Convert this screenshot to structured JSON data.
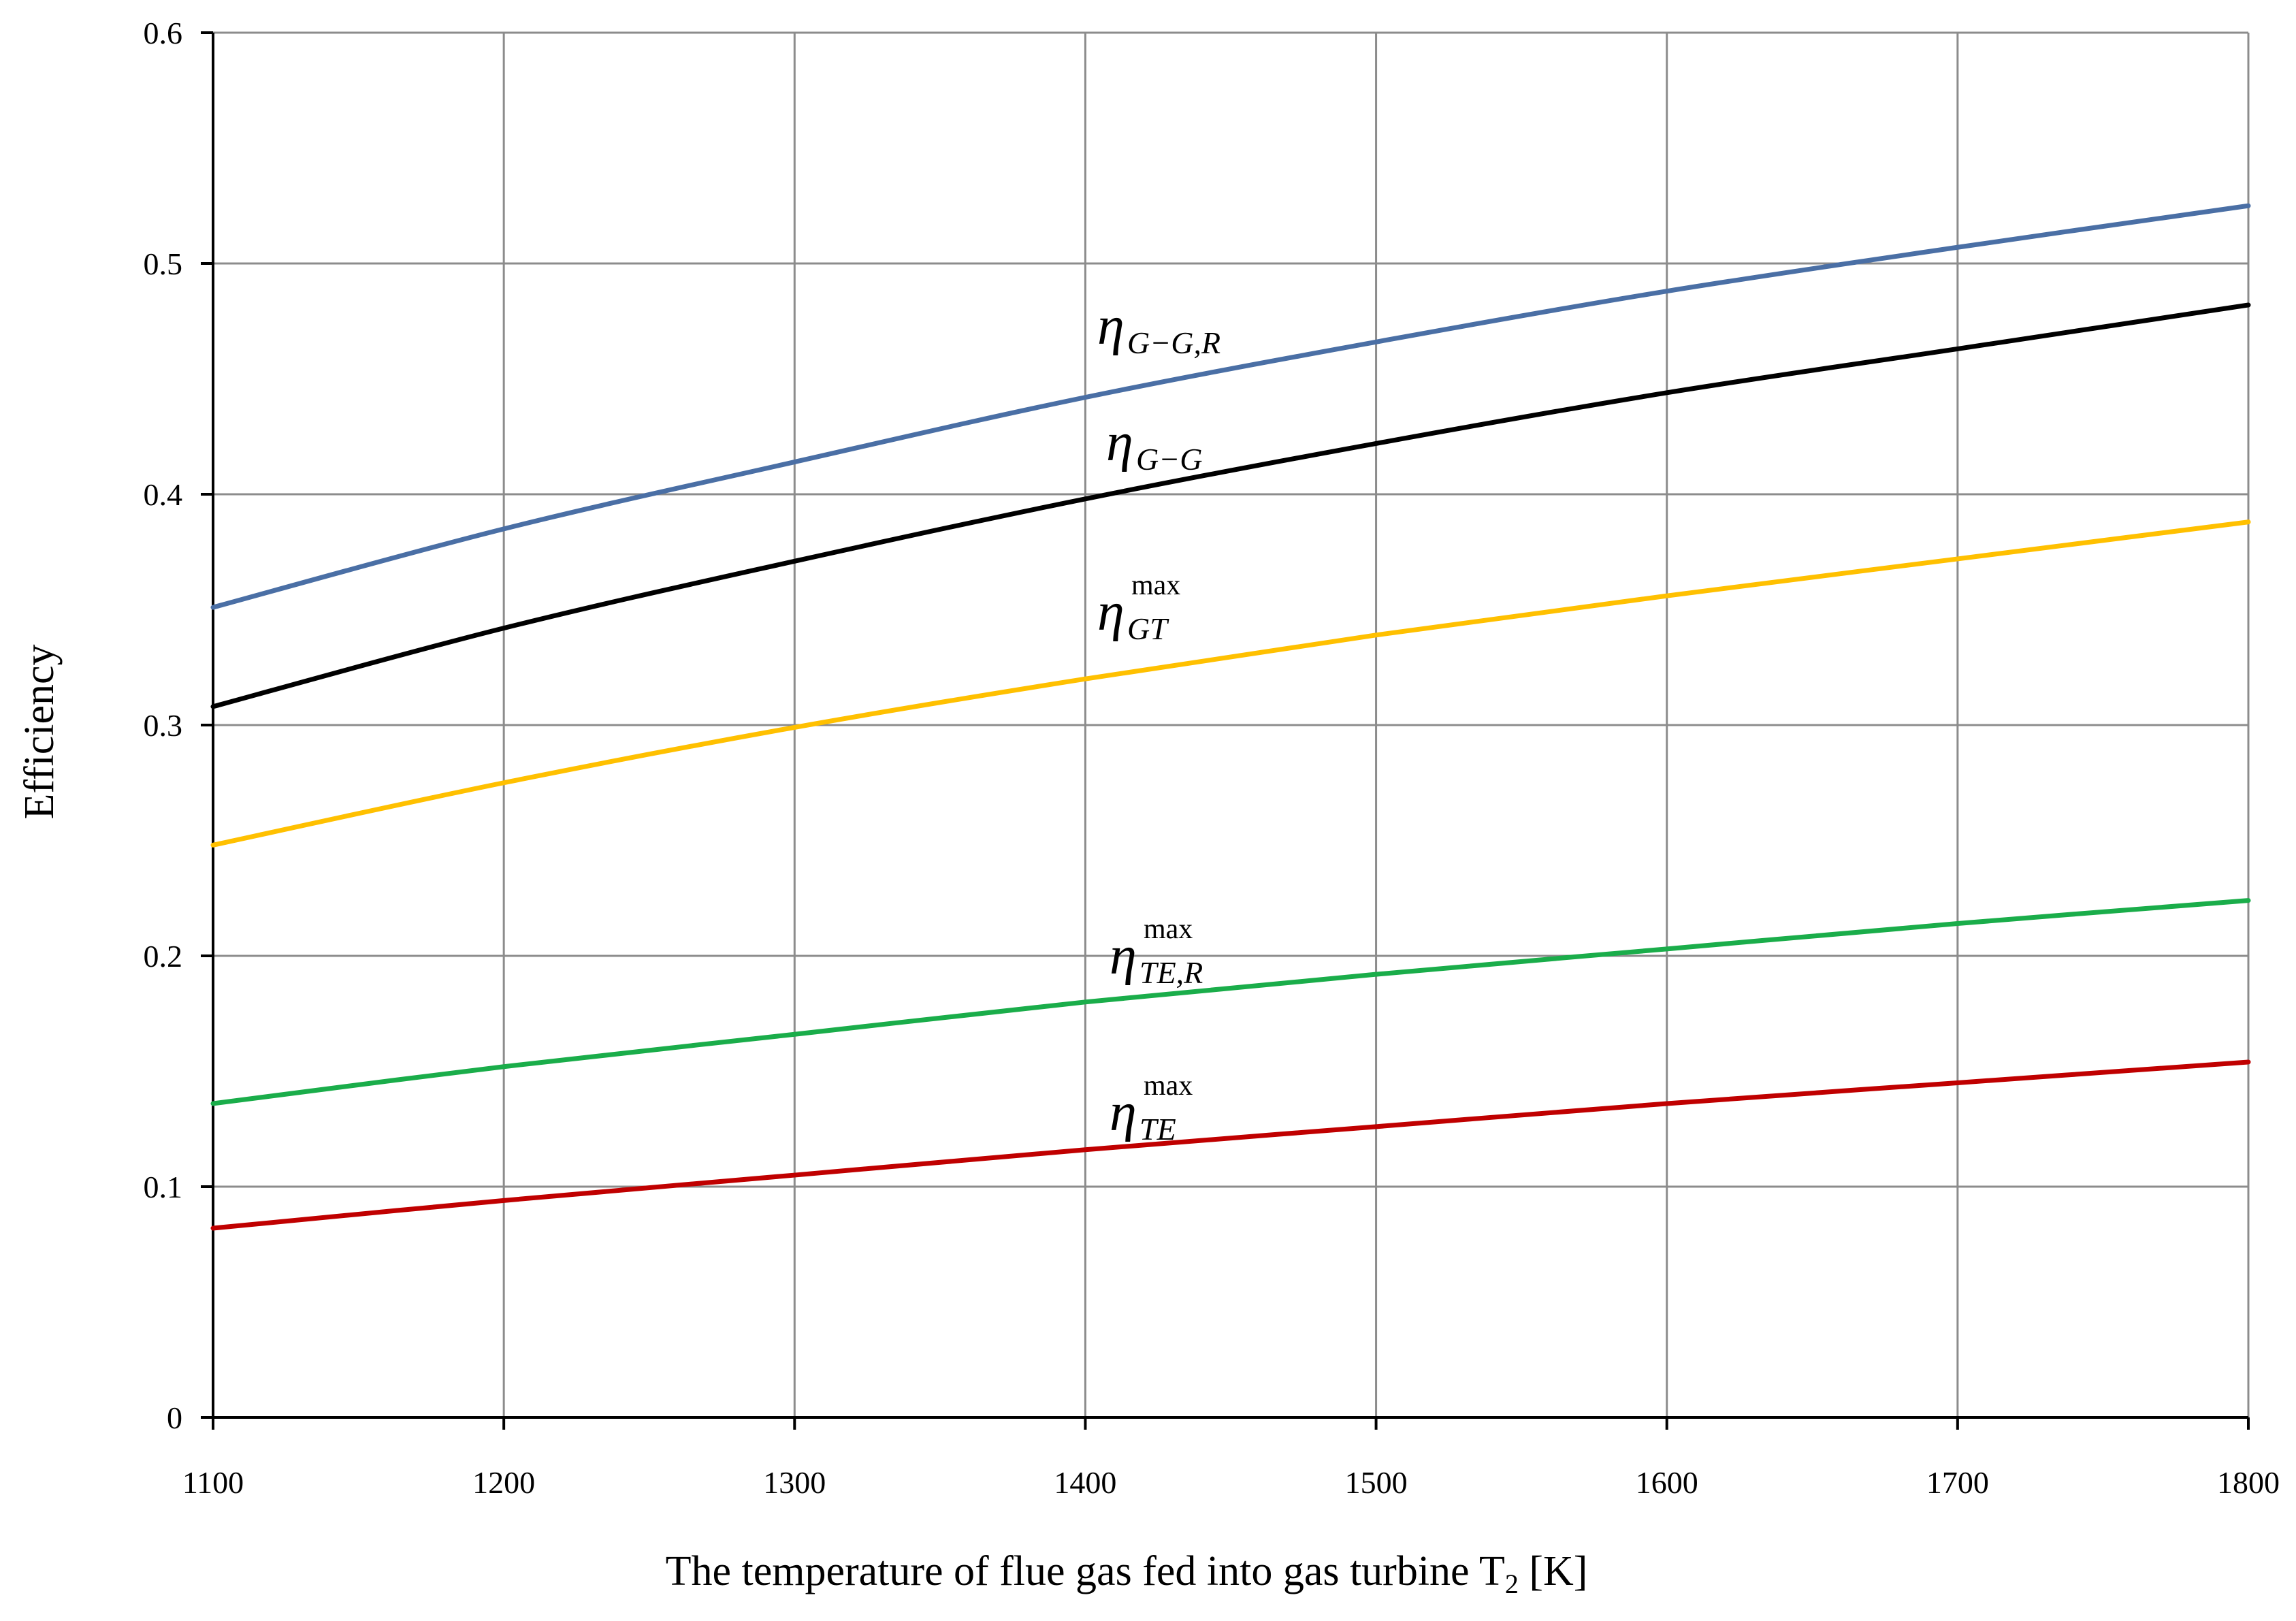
{
  "chart_data": {
    "type": "line",
    "title": "",
    "xlabel": "The temperature of flue gas fed into gas turbine T",
    "xlabel_subscript": "2",
    "xlabel_unit": " [K]",
    "ylabel": "Efficiency",
    "xlim": [
      1100,
      1800
    ],
    "ylim": [
      0,
      0.6
    ],
    "xticks": [
      1100,
      1200,
      1300,
      1400,
      1500,
      1600,
      1700,
      1800
    ],
    "yticks": [
      0,
      0.1,
      0.2,
      0.3,
      0.4,
      0.5,
      0.6
    ],
    "xtick_labels": [
      "1100",
      "1200",
      "1300",
      "1400",
      "1500",
      "1600",
      "1700",
      "1800"
    ],
    "ytick_labels": [
      "0",
      "0.1",
      "0.2",
      "0.3",
      "0.4",
      "0.5",
      "0.6"
    ],
    "grid": true,
    "legend": "inline labels",
    "x": [
      1100,
      1200,
      1300,
      1400,
      1500,
      1600,
      1700,
      1800
    ],
    "series": [
      {
        "id": "eta-gg-r",
        "name": "η G−G,R",
        "symbol": "η",
        "subscript": "G−G,R",
        "superscript": "",
        "color": "#4a6fa5",
        "values": [
          0.351,
          0.385,
          0.414,
          0.442,
          0.466,
          0.488,
          0.507,
          0.525
        ]
      },
      {
        "id": "eta-gg",
        "name": "η G−G",
        "symbol": "η",
        "subscript": "G−G",
        "superscript": "",
        "color": "#000000",
        "values": [
          0.308,
          0.342,
          0.371,
          0.398,
          0.422,
          0.444,
          0.463,
          0.482
        ]
      },
      {
        "id": "eta-gt-max",
        "name": "η max GT",
        "symbol": "η",
        "subscript": "GT",
        "superscript": "max",
        "color": "#ffc000",
        "values": [
          0.248,
          0.275,
          0.299,
          0.32,
          0.339,
          0.356,
          0.372,
          0.388
        ]
      },
      {
        "id": "eta-te-r-max",
        "name": "η max TE,R",
        "symbol": "η",
        "subscript": "TE,R",
        "superscript": "max",
        "color": "#1aad4a",
        "values": [
          0.136,
          0.152,
          0.166,
          0.18,
          0.192,
          0.203,
          0.214,
          0.224
        ]
      },
      {
        "id": "eta-te-max",
        "name": "η max TE",
        "symbol": "η",
        "subscript": "TE",
        "superscript": "max",
        "color": "#c00000",
        "values": [
          0.082,
          0.094,
          0.105,
          0.116,
          0.126,
          0.136,
          0.145,
          0.154
        ]
      }
    ]
  }
}
